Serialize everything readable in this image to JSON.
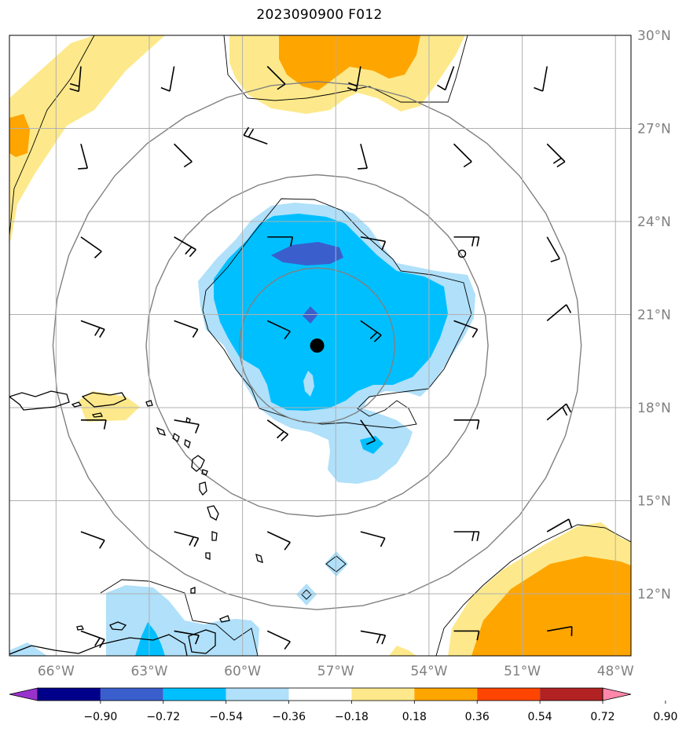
{
  "title": "2023090900 F012",
  "map": {
    "lon_range": [
      -67.5,
      -47.5
    ],
    "lat_range": [
      10,
      30
    ],
    "lon_ticks": [
      -66,
      -63,
      -60,
      -57,
      -54,
      -51,
      -48
    ],
    "lon_tick_labels": [
      "66°W",
      "63°W",
      "60°W",
      "57°W",
      "54°W",
      "51°W",
      "48°W"
    ],
    "lat_ticks": [
      12,
      15,
      18,
      21,
      24,
      27,
      30
    ],
    "lat_tick_labels": [
      "12°N",
      "15°N",
      "18°N",
      "21°N",
      "24°N",
      "27°N",
      "30°N"
    ],
    "center": {
      "lon": -57.6,
      "lat": 20.0
    },
    "ring_radii_deg": [
      2.5,
      5.5,
      8.5
    ],
    "grid": true
  },
  "colorbar": {
    "levels": [
      -0.9,
      -0.72,
      -0.54,
      -0.36,
      -0.18,
      0.18,
      0.36,
      0.54,
      0.72,
      0.9
    ],
    "labels": [
      "−0.90",
      "−0.72",
      "−0.54",
      "−0.36",
      "−0.18",
      "0.18",
      "0.36",
      "0.54",
      "0.72",
      "0.90"
    ],
    "colors": [
      "#9932cc",
      "#00008b",
      "#3a5fcd",
      "#00bfff",
      "#b0e0fa",
      "#ffffff",
      "#fde98b",
      "#ffa500",
      "#ff4500",
      "#b22222",
      "#ff88aa"
    ],
    "extend": "both"
  },
  "colors": {
    "ring": "#808080",
    "grid": "#b0b0b0",
    "coast": "#000000",
    "barb": "#000000",
    "tick_label": "#808080"
  }
}
